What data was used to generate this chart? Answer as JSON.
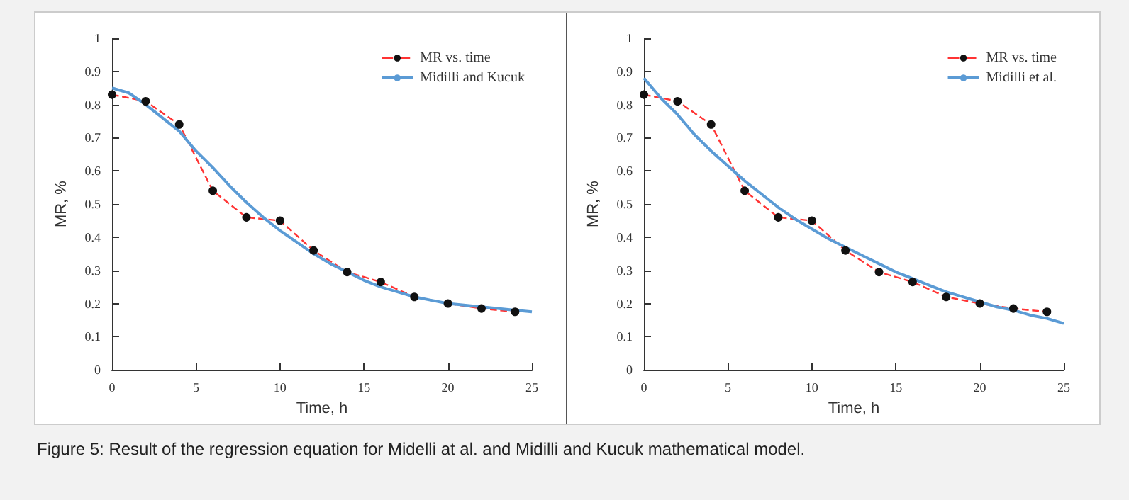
{
  "chart_data": [
    {
      "type": "line",
      "xlabel": "Time, h",
      "ylabel": "MR, %",
      "xlim": [
        0,
        25
      ],
      "ylim": [
        0,
        1
      ],
      "xticks": [
        0,
        5,
        10,
        15,
        20,
        25
      ],
      "yticks": [
        0,
        0.1,
        0.2,
        0.3,
        0.4,
        0.5,
        0.6,
        0.7,
        0.8,
        0.9,
        1
      ],
      "grid": false,
      "legend": "top right",
      "annotations": [
        "Figure 5: Result of the regression equation for Midelli at al. and Midilli and Kucuk mathematical model."
      ],
      "series": [
        {
          "name": "MR vs. time",
          "color": "#ff3333",
          "marker": "circle",
          "line_style": "dashed",
          "x": [
            0,
            2,
            4,
            6,
            8,
            10,
            12,
            14,
            16,
            18,
            20,
            22,
            24
          ],
          "values": [
            0.83,
            0.81,
            0.74,
            0.54,
            0.46,
            0.45,
            0.36,
            0.295,
            0.265,
            0.22,
            0.2,
            0.185,
            0.175
          ]
        },
        {
          "name": "Midilli and Kucuk",
          "color": "#5b9bd5",
          "marker": "none",
          "line_style": "solid",
          "x": [
            0,
            1,
            2,
            3,
            4,
            5,
            6,
            7,
            8,
            9,
            10,
            11,
            12,
            13,
            14,
            15,
            16,
            17,
            18,
            19,
            20,
            22,
            24,
            25
          ],
          "values": [
            0.85,
            0.835,
            0.8,
            0.76,
            0.72,
            0.66,
            0.61,
            0.555,
            0.505,
            0.46,
            0.42,
            0.385,
            0.35,
            0.32,
            0.295,
            0.27,
            0.25,
            0.235,
            0.22,
            0.21,
            0.2,
            0.19,
            0.18,
            0.175
          ]
        }
      ]
    },
    {
      "type": "line",
      "xlabel": "Time, h",
      "ylabel": "MR, %",
      "xlim": [
        0,
        25
      ],
      "ylim": [
        0,
        1
      ],
      "xticks": [
        0,
        5,
        10,
        15,
        20,
        25
      ],
      "yticks": [
        0,
        0.1,
        0.2,
        0.3,
        0.4,
        0.5,
        0.6,
        0.7,
        0.8,
        0.9,
        1
      ],
      "grid": false,
      "legend": "top right",
      "series": [
        {
          "name": "MR vs. time",
          "color": "#ff3333",
          "marker": "circle",
          "line_style": "dashed",
          "x": [
            0,
            2,
            4,
            6,
            8,
            10,
            12,
            14,
            16,
            18,
            20,
            22,
            24
          ],
          "values": [
            0.83,
            0.81,
            0.74,
            0.54,
            0.46,
            0.45,
            0.36,
            0.295,
            0.265,
            0.22,
            0.2,
            0.185,
            0.175
          ]
        },
        {
          "name": "Midilli et al.",
          "color": "#5b9bd5",
          "marker": "none",
          "line_style": "solid",
          "x": [
            0,
            1,
            2,
            3,
            4,
            5,
            6,
            7,
            8,
            9,
            10,
            11,
            12,
            13,
            14,
            15,
            16,
            17,
            18,
            19,
            20,
            21,
            22,
            23,
            24,
            25
          ],
          "values": [
            0.88,
            0.82,
            0.77,
            0.71,
            0.66,
            0.615,
            0.57,
            0.53,
            0.49,
            0.455,
            0.425,
            0.395,
            0.37,
            0.345,
            0.32,
            0.295,
            0.275,
            0.255,
            0.235,
            0.22,
            0.205,
            0.19,
            0.18,
            0.165,
            0.155,
            0.14
          ]
        }
      ]
    }
  ]
}
